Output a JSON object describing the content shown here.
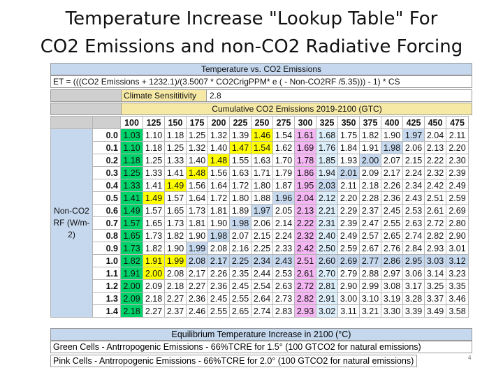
{
  "title": {
    "line1": "Temperature Increase \"Lookup Table\" For",
    "line2": "CO2 Emissions and non-CO2 Radiative Forcing"
  },
  "sheet": {
    "header": "Temperature vs. CO2 Emissions",
    "formula": "ET = (((CO2 Emissions + 1232.1)/(3.5007 * CO2CrigPPM* e ( - Non-CO2RF /5.35))) - 1) * CS",
    "climate_sensitivity_label": "Climate Sensititivity",
    "climate_sensitivity_value": "2.8",
    "cumulative_header": "Cumulative CO2 Emissions 2019-2100 (GTC)",
    "side_label": "Non-CO2 RF (W/m-2)",
    "columns": [
      "100",
      "125",
      "150",
      "175",
      "200",
      "225",
      "250",
      "275",
      "300",
      "325",
      "350",
      "375",
      "400",
      "425",
      "450",
      "475"
    ],
    "rows": [
      {
        "label": "0.0",
        "values": [
          "1.03",
          "1.10",
          "1.18",
          "1.25",
          "1.32",
          "1.39",
          "1.46",
          "1.54",
          "1.61",
          "1.68",
          "1.75",
          "1.82",
          "1.90",
          "1.97",
          "2.04",
          "2.11"
        ]
      },
      {
        "label": "0.1",
        "values": [
          "1.10",
          "1.18",
          "1.25",
          "1.32",
          "1.40",
          "1.47",
          "1.54",
          "1.62",
          "1.69",
          "1.76",
          "1.84",
          "1.91",
          "1.98",
          "2.06",
          "2.13",
          "2.20"
        ]
      },
      {
        "label": "0.2",
        "values": [
          "1.18",
          "1.25",
          "1.33",
          "1.40",
          "1.48",
          "1.55",
          "1.63",
          "1.70",
          "1.78",
          "1.85",
          "1.93",
          "2.00",
          "2.07",
          "2.15",
          "2.22",
          "2.30"
        ]
      },
      {
        "label": "0.3",
        "values": [
          "1.25",
          "1.33",
          "1.41",
          "1.48",
          "1.56",
          "1.63",
          "1.71",
          "1.79",
          "1.86",
          "1.94",
          "2.01",
          "2.09",
          "2.17",
          "2.24",
          "2.32",
          "2.39"
        ]
      },
      {
        "label": "0.4",
        "values": [
          "1.33",
          "1.41",
          "1.49",
          "1.56",
          "1.64",
          "1.72",
          "1.80",
          "1.87",
          "1.95",
          "2.03",
          "2.11",
          "2.18",
          "2.26",
          "2.34",
          "2.42",
          "2.49"
        ]
      },
      {
        "label": "0.5",
        "values": [
          "1.41",
          "1.49",
          "1.57",
          "1.64",
          "1.72",
          "1.80",
          "1.88",
          "1.96",
          "2.04",
          "2.12",
          "2.20",
          "2.28",
          "2.36",
          "2.43",
          "2.51",
          "2.59"
        ]
      },
      {
        "label": "0.6",
        "values": [
          "1.49",
          "1.57",
          "1.65",
          "1.73",
          "1.81",
          "1.89",
          "1.97",
          "2.05",
          "2.13",
          "2.21",
          "2.29",
          "2.37",
          "2.45",
          "2.53",
          "2.61",
          "2.69"
        ]
      },
      {
        "label": "0.7",
        "values": [
          "1.57",
          "1.65",
          "1.73",
          "1.81",
          "1.90",
          "1.98",
          "2.06",
          "2.14",
          "2.22",
          "2.31",
          "2.39",
          "2.47",
          "2.55",
          "2.63",
          "2.72",
          "2.80"
        ]
      },
      {
        "label": "0.8",
        "values": [
          "1.65",
          "1.73",
          "1.82",
          "1.90",
          "1.98",
          "2.07",
          "2.15",
          "2.24",
          "2.32",
          "2.40",
          "2.49",
          "2.57",
          "2.65",
          "2.74",
          "2.82",
          "2.90"
        ]
      },
      {
        "label": "0.9",
        "values": [
          "1.73",
          "1.82",
          "1.90",
          "1.99",
          "2.08",
          "2.16",
          "2.25",
          "2.33",
          "2.42",
          "2.50",
          "2.59",
          "2.67",
          "2.76",
          "2.84",
          "2.93",
          "3.01"
        ]
      },
      {
        "label": "1.0",
        "values": [
          "1.82",
          "1.91",
          "1.99",
          "2.08",
          "2.17",
          "2.25",
          "2.34",
          "2.43",
          "2.51",
          "2.60",
          "2.69",
          "2.77",
          "2.86",
          "2.95",
          "3.03",
          "3.12"
        ]
      },
      {
        "label": "1.1",
        "values": [
          "1.91",
          "2.00",
          "2.08",
          "2.17",
          "2.26",
          "2.35",
          "2.44",
          "2.53",
          "2.61",
          "2.70",
          "2.79",
          "2.88",
          "2.97",
          "3.06",
          "3.14",
          "3.23"
        ]
      },
      {
        "label": "1.2",
        "values": [
          "2.00",
          "2.09",
          "2.18",
          "2.27",
          "2.36",
          "2.45",
          "2.54",
          "2.63",
          "2.72",
          "2.81",
          "2.90",
          "2.99",
          "3.08",
          "3.17",
          "3.25",
          "3.35"
        ]
      },
      {
        "label": "1.3",
        "values": [
          "2.09",
          "2.18",
          "2.27",
          "2.36",
          "2.45",
          "2.55",
          "2.64",
          "2.73",
          "2.82",
          "2.91",
          "3.00",
          "3.10",
          "3.19",
          "3.28",
          "3.37",
          "3.46"
        ]
      },
      {
        "label": "1.4",
        "values": [
          "2.18",
          "2.27",
          "2.37",
          "2.46",
          "2.55",
          "2.65",
          "2.74",
          "2.83",
          "2.93",
          "3.02",
          "3.11",
          "3.21",
          "3.30",
          "3.39",
          "3.49",
          "3.58"
        ]
      }
    ],
    "highlights": {
      "green": [
        [
          0,
          0
        ],
        [
          1,
          0
        ],
        [
          2,
          0
        ],
        [
          3,
          0
        ],
        [
          4,
          0
        ],
        [
          5,
          0
        ],
        [
          6,
          0
        ],
        [
          7,
          0
        ],
        [
          8,
          0
        ],
        [
          9,
          0
        ],
        [
          10,
          0
        ],
        [
          11,
          0
        ],
        [
          12,
          0
        ],
        [
          13,
          0
        ],
        [
          14,
          0
        ]
      ],
      "yellow": [
        [
          0,
          6
        ],
        [
          1,
          5
        ],
        [
          1,
          6
        ],
        [
          2,
          4
        ],
        [
          3,
          3
        ],
        [
          4,
          2
        ],
        [
          5,
          1
        ],
        [
          9,
          0
        ],
        [
          10,
          1
        ],
        [
          10,
          2
        ],
        [
          11,
          1
        ]
      ],
      "pink": [
        [
          0,
          8
        ],
        [
          1,
          8
        ],
        [
          2,
          8
        ],
        [
          3,
          8
        ],
        [
          4,
          8
        ],
        [
          5,
          8
        ],
        [
          6,
          8
        ],
        [
          7,
          8
        ],
        [
          8,
          8
        ],
        [
          9,
          8
        ],
        [
          10,
          8
        ],
        [
          11,
          8
        ],
        [
          12,
          8
        ],
        [
          13,
          8
        ],
        [
          14,
          8
        ]
      ],
      "blue": [
        [
          0,
          13
        ],
        [
          1,
          12
        ],
        [
          2,
          11
        ],
        [
          3,
          10
        ],
        [
          4,
          9
        ],
        [
          5,
          7
        ],
        [
          6,
          6
        ],
        [
          7,
          5
        ],
        [
          8,
          4
        ],
        [
          9,
          3
        ],
        [
          10,
          3
        ],
        [
          10,
          4
        ],
        [
          10,
          5
        ],
        [
          10,
          6
        ],
        [
          10,
          7
        ],
        [
          10,
          8
        ],
        [
          10,
          9
        ],
        [
          10,
          10
        ],
        [
          10,
          11
        ],
        [
          10,
          12
        ],
        [
          10,
          13
        ],
        [
          10,
          14
        ],
        [
          10,
          15
        ]
      ],
      "lightblue": [
        [
          0,
          9
        ],
        [
          1,
          9
        ],
        [
          2,
          9
        ],
        [
          3,
          9
        ],
        [
          4,
          9
        ],
        [
          5,
          9
        ],
        [
          6,
          9
        ],
        [
          7,
          9
        ],
        [
          8,
          9
        ],
        [
          9,
          9
        ],
        [
          11,
          9
        ],
        [
          12,
          9
        ],
        [
          13,
          9
        ],
        [
          14,
          9
        ]
      ]
    },
    "footer_header": "Equilibrium Temperature Increase in 2100 (°C)",
    "green_note": "Green Cells - Antrropogenic Emissions - 66%TCRE for 1.5° (100 GTCO2 for natural emissions)",
    "pink_note": "Pink Cells - Antrropogenic Emissions - 66%TCRE for 2.0° (100 GTCO2 for natural emissions)"
  },
  "page_number": "4",
  "colors": {
    "green": "#00d26a",
    "yellow": "#ffff00",
    "pink": "#f4b6f2",
    "blue": "#c5d8ee",
    "header_yellow": "#f6e9a6"
  }
}
